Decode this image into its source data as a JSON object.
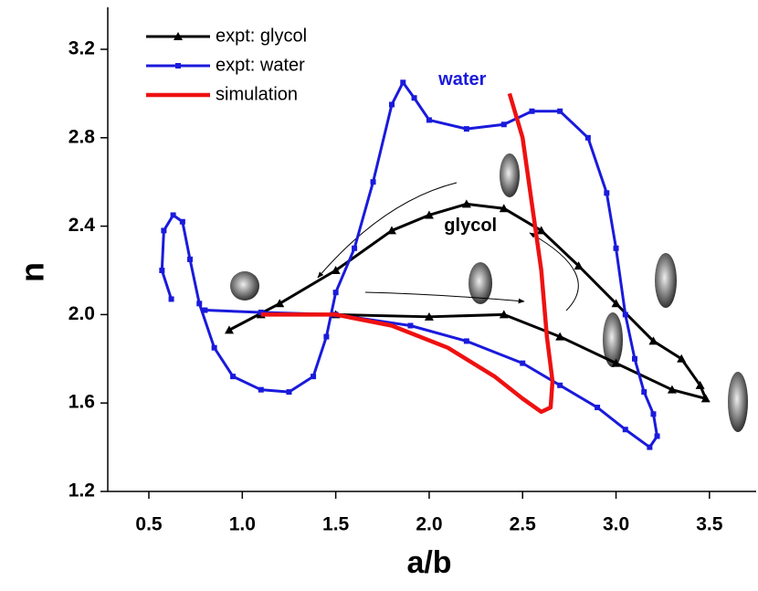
{
  "chart_data": {
    "type": "line",
    "xlabel": "a/b",
    "ylabel": "n",
    "xlim": [
      0.28,
      3.75
    ],
    "ylim": [
      1.2,
      3.39
    ],
    "xticks": [
      0.5,
      {
        "value": 1,
        "label": "1.0"
      },
      1.5,
      {
        "value": 2,
        "label": "2.0"
      },
      2.5,
      {
        "value": 3,
        "label": "3.0"
      },
      3.5
    ],
    "yticks": [
      1.2,
      1.6,
      {
        "value": 2,
        "label": "2.0"
      },
      2.4,
      2.8,
      3.2
    ],
    "series": [
      {
        "name": "expt: glycol",
        "color": "#000000",
        "marker": "triangle",
        "x": [
          0.93,
          1.2,
          1.5,
          1.8,
          2.0,
          2.2,
          2.4,
          2.6,
          2.8,
          3.0,
          3.2,
          3.35,
          3.45,
          3.48,
          3.3,
          3.0,
          2.7,
          2.4,
          2.0,
          1.5,
          1.1
        ],
        "values": [
          1.93,
          2.05,
          2.2,
          2.38,
          2.45,
          2.5,
          2.48,
          2.38,
          2.22,
          2.05,
          1.88,
          1.8,
          1.68,
          1.62,
          1.66,
          1.78,
          1.9,
          2.0,
          1.99,
          2.0,
          2.0
        ]
      },
      {
        "name": "expt: water",
        "color": "#1a1adc",
        "marker": "square",
        "x": [
          0.62,
          0.57,
          0.58,
          0.63,
          0.68,
          0.72,
          0.77,
          0.85,
          0.95,
          1.1,
          1.25,
          1.38,
          1.45,
          1.5,
          1.6,
          1.7,
          1.8,
          1.86,
          1.92,
          2.0,
          2.2,
          2.4,
          2.55,
          2.7,
          2.85,
          2.95,
          3.0,
          3.05,
          3.1,
          3.15,
          3.2,
          3.22,
          3.18,
          3.05,
          2.9,
          2.7,
          2.5,
          2.2,
          1.9,
          1.5,
          1.1,
          0.8
        ],
        "values": [
          2.07,
          2.2,
          2.38,
          2.45,
          2.42,
          2.25,
          2.05,
          1.85,
          1.72,
          1.66,
          1.65,
          1.72,
          1.9,
          2.1,
          2.3,
          2.6,
          2.95,
          3.05,
          2.98,
          2.88,
          2.84,
          2.86,
          2.92,
          2.92,
          2.8,
          2.55,
          2.3,
          2.0,
          1.8,
          1.65,
          1.55,
          1.45,
          1.4,
          1.48,
          1.58,
          1.68,
          1.78,
          1.88,
          1.95,
          2.0,
          2.01,
          2.02
        ]
      },
      {
        "name": "simulation",
        "color": "#ee1111",
        "x": [
          1.1,
          1.5,
          1.8,
          2.1,
          2.35,
          2.5,
          2.6,
          2.65,
          2.66,
          2.63,
          2.6,
          2.55,
          2.5,
          2.43
        ],
        "values": [
          2.0,
          2.0,
          1.95,
          1.85,
          1.72,
          1.62,
          1.56,
          1.58,
          1.7,
          1.9,
          2.2,
          2.5,
          2.8,
          3.0
        ]
      }
    ],
    "annotations": [
      {
        "text": "water",
        "x": 2.05,
        "y": 3.06,
        "color": "#1a1adc"
      },
      {
        "text": "glycol",
        "x": 2.08,
        "y": 2.4,
        "color": "#000000"
      }
    ]
  }
}
